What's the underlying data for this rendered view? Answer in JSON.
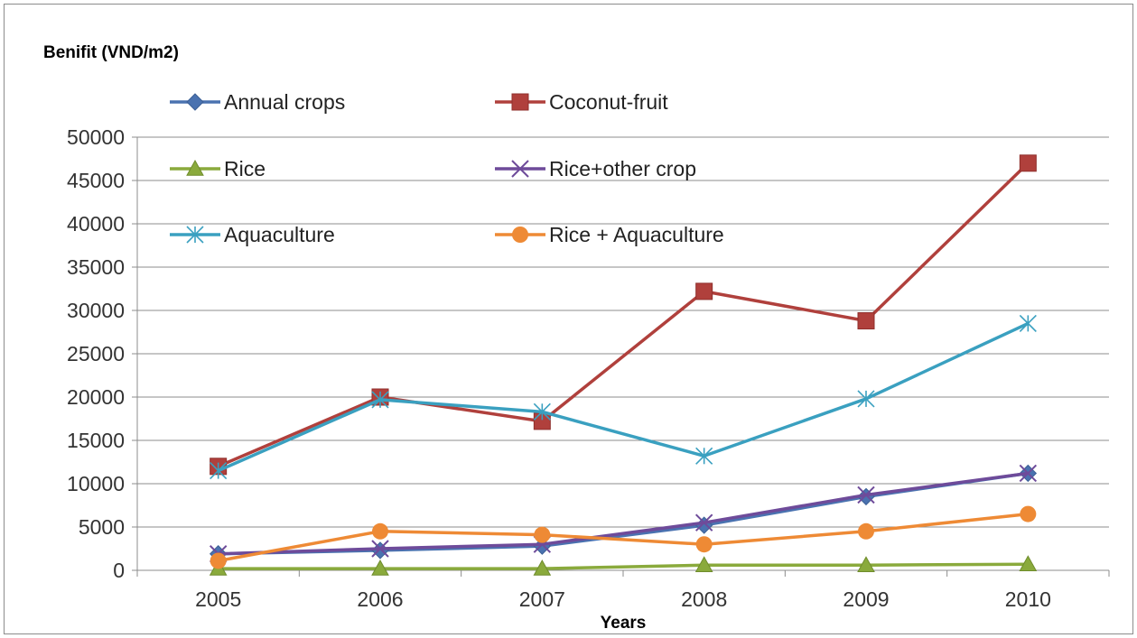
{
  "chart_data": {
    "type": "line",
    "title": "",
    "ylabel": "Benifit (VND/m2)",
    "xlabel": "Years",
    "categories": [
      "2005",
      "2006",
      "2007",
      "2008",
      "2009",
      "2010"
    ],
    "ylim": [
      0,
      50000
    ],
    "yticks": [
      0,
      5000,
      10000,
      15000,
      20000,
      25000,
      30000,
      35000,
      40000,
      45000,
      50000
    ],
    "grid": true,
    "legend_position": "top-left",
    "series": [
      {
        "name": "Annual crops",
        "color": "#4a72b0",
        "marker": "diamond",
        "values": [
          1900,
          2300,
          2800,
          5200,
          8500,
          11200
        ]
      },
      {
        "name": "Coconut-fruit",
        "color": "#b0403c",
        "marker": "square",
        "values": [
          12000,
          20000,
          17200,
          32200,
          28800,
          47000
        ]
      },
      {
        "name": "Rice",
        "color": "#8aaa3c",
        "marker": "triangle",
        "values": [
          200,
          200,
          200,
          600,
          600,
          700
        ]
      },
      {
        "name": "Rice+other crop",
        "color": "#6e4b9a",
        "marker": "x",
        "values": [
          1900,
          2500,
          3000,
          5500,
          8700,
          11200
        ]
      },
      {
        "name": "Aquaculture",
        "color": "#3aa0c0",
        "marker": "asterisk",
        "values": [
          11500,
          19700,
          18300,
          13200,
          19800,
          28500
        ]
      },
      {
        "name": "Rice + Aquaculture",
        "color": "#ee8a35",
        "marker": "circle",
        "values": [
          1100,
          4500,
          4100,
          3000,
          4500,
          6500
        ]
      }
    ]
  }
}
